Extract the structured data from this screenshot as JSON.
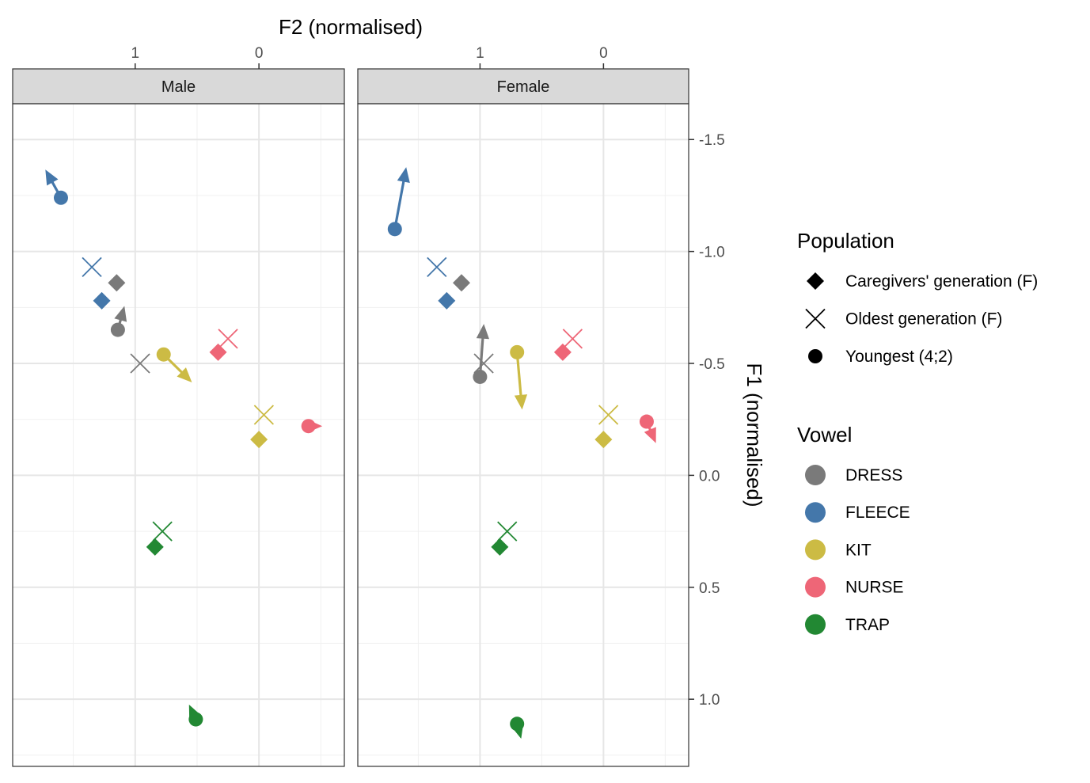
{
  "chart_data": {
    "type": "scatter",
    "xlabel": "F2 (normalised)",
    "ylabel": "F1 (normalised)",
    "x_axis_reversed": true,
    "y_axis_reversed": true,
    "xlim": [
      1.99,
      -0.69
    ],
    "ylim": [
      -1.66,
      1.3
    ],
    "xticks": [
      1,
      0
    ],
    "yticks": [
      -1.5,
      -1.0,
      -0.5,
      0.0,
      0.5,
      1.0
    ],
    "ytick_labels": [
      "-1.5",
      "-1.0",
      "-0.5",
      "0.0",
      "0.5",
      "1.0"
    ],
    "x_axis_position": "top",
    "y_axis_position": "right",
    "grid": true,
    "panels": [
      {
        "label": "Male",
        "points": [
          {
            "vowel": "FLEECE",
            "population": "Caregivers' generation (F)",
            "f2": 1.27,
            "f1": -0.78
          },
          {
            "vowel": "FLEECE",
            "population": "Oldest generation (F)",
            "f2": 1.35,
            "f1": -0.93
          },
          {
            "vowel": "FLEECE",
            "population": "Youngest (4;2)",
            "f2": 1.6,
            "f1": -1.24
          },
          {
            "vowel": "DRESS",
            "population": "Caregivers' generation (F)",
            "f2": 1.15,
            "f1": -0.86
          },
          {
            "vowel": "DRESS",
            "population": "Oldest generation (F)",
            "f2": 0.96,
            "f1": -0.5
          },
          {
            "vowel": "DRESS",
            "population": "Youngest (4;2)",
            "f2": 1.14,
            "f1": -0.65
          },
          {
            "vowel": "KIT",
            "population": "Caregivers' generation (F)",
            "f2": 0.0,
            "f1": -0.16
          },
          {
            "vowel": "KIT",
            "population": "Oldest generation (F)",
            "f2": -0.04,
            "f1": -0.27
          },
          {
            "vowel": "KIT",
            "population": "Youngest (4;2)",
            "f2": 0.77,
            "f1": -0.54
          },
          {
            "vowel": "NURSE",
            "population": "Caregivers' generation (F)",
            "f2": 0.33,
            "f1": -0.55
          },
          {
            "vowel": "NURSE",
            "population": "Oldest generation (F)",
            "f2": 0.25,
            "f1": -0.61
          },
          {
            "vowel": "NURSE",
            "population": "Youngest (4;2)",
            "f2": -0.4,
            "f1": -0.22
          },
          {
            "vowel": "TRAP",
            "population": "Caregivers' generation (F)",
            "f2": 0.84,
            "f1": 0.32
          },
          {
            "vowel": "TRAP",
            "population": "Oldest generation (F)",
            "f2": 0.78,
            "f1": 0.25
          },
          {
            "vowel": "TRAP",
            "population": "Youngest (4;2)",
            "f2": 0.51,
            "f1": 1.09
          }
        ],
        "arrows": [
          {
            "vowel": "FLEECE",
            "from": [
              1.6,
              -1.24
            ],
            "to": [
              1.72,
              -1.36
            ]
          },
          {
            "vowel": "DRESS",
            "from": [
              1.14,
              -0.65
            ],
            "to": [
              1.09,
              -0.75
            ]
          },
          {
            "vowel": "KIT",
            "from": [
              0.77,
              -0.54
            ],
            "to": [
              0.55,
              -0.42
            ]
          },
          {
            "vowel": "NURSE",
            "from": [
              -0.4,
              -0.22
            ],
            "to": [
              -0.5,
              -0.22
            ]
          },
          {
            "vowel": "TRAP",
            "from": [
              0.51,
              1.09
            ],
            "to": [
              0.56,
              1.03
            ]
          }
        ]
      },
      {
        "label": "Female",
        "points": [
          {
            "vowel": "FLEECE",
            "population": "Caregivers' generation (F)",
            "f2": 1.27,
            "f1": -0.78
          },
          {
            "vowel": "FLEECE",
            "population": "Oldest generation (F)",
            "f2": 1.35,
            "f1": -0.93
          },
          {
            "vowel": "FLEECE",
            "population": "Youngest (4;2)",
            "f2": 1.69,
            "f1": -1.1
          },
          {
            "vowel": "DRESS",
            "population": "Caregivers' generation (F)",
            "f2": 1.15,
            "f1": -0.86
          },
          {
            "vowel": "DRESS",
            "population": "Oldest generation (F)",
            "f2": 0.97,
            "f1": -0.5
          },
          {
            "vowel": "DRESS",
            "population": "Youngest (4;2)",
            "f2": 1.0,
            "f1": -0.44
          },
          {
            "vowel": "KIT",
            "population": "Caregivers' generation (F)",
            "f2": 0.0,
            "f1": -0.16
          },
          {
            "vowel": "KIT",
            "population": "Oldest generation (F)",
            "f2": -0.04,
            "f1": -0.27
          },
          {
            "vowel": "KIT",
            "population": "Youngest (4;2)",
            "f2": 0.7,
            "f1": -0.55
          },
          {
            "vowel": "NURSE",
            "population": "Caregivers' generation (F)",
            "f2": 0.33,
            "f1": -0.55
          },
          {
            "vowel": "NURSE",
            "population": "Oldest generation (F)",
            "f2": 0.25,
            "f1": -0.61
          },
          {
            "vowel": "NURSE",
            "population": "Youngest (4;2)",
            "f2": -0.35,
            "f1": -0.24
          },
          {
            "vowel": "TRAP",
            "population": "Caregivers' generation (F)",
            "f2": 0.84,
            "f1": 0.32
          },
          {
            "vowel": "TRAP",
            "population": "Oldest generation (F)",
            "f2": 0.78,
            "f1": 0.25
          },
          {
            "vowel": "TRAP",
            "population": "Youngest (4;2)",
            "f2": 0.7,
            "f1": 1.11
          }
        ],
        "arrows": [
          {
            "vowel": "FLEECE",
            "from": [
              1.69,
              -1.1
            ],
            "to": [
              1.6,
              -1.37
            ]
          },
          {
            "vowel": "DRESS",
            "from": [
              1.0,
              -0.44
            ],
            "to": [
              0.97,
              -0.67
            ]
          },
          {
            "vowel": "KIT",
            "from": [
              0.7,
              -0.55
            ],
            "to": [
              0.66,
              -0.3
            ]
          },
          {
            "vowel": "NURSE",
            "from": [
              -0.35,
              -0.24
            ],
            "to": [
              -0.42,
              -0.15
            ]
          },
          {
            "vowel": "TRAP",
            "from": [
              0.7,
              1.11
            ],
            "to": [
              0.67,
              1.17
            ]
          }
        ]
      }
    ],
    "legend": {
      "placement": "right",
      "population": {
        "title": "Population",
        "entries": [
          {
            "label": "Caregivers' generation (F)",
            "shape": "diamond"
          },
          {
            "label": "Oldest generation (F)",
            "shape": "cross"
          },
          {
            "label": "Youngest (4;2)",
            "shape": "circle"
          }
        ]
      },
      "vowel": {
        "title": "Vowel",
        "entries": [
          {
            "label": "DRESS",
            "color": "#7a7a7a"
          },
          {
            "label": "FLEECE",
            "color": "#4477aa"
          },
          {
            "label": "KIT",
            "color": "#ccbb44"
          },
          {
            "label": "NURSE",
            "color": "#ee6677"
          },
          {
            "label": "TRAP",
            "color": "#228833"
          }
        ]
      }
    }
  }
}
